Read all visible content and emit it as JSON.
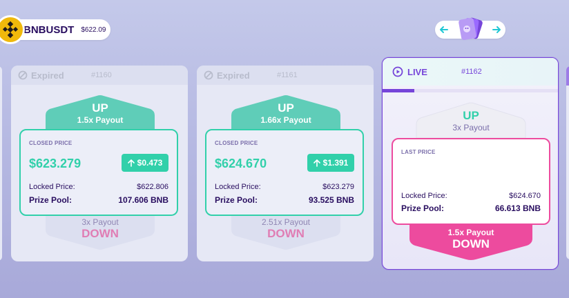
{
  "ticker": {
    "symbol": "BNBUSDT",
    "price": "$622.09",
    "logo_icon": "bnb-logo-icon",
    "logo_color": "#f0b90b"
  },
  "nav": {
    "prev_icon": "arrow-left-icon",
    "next_icon": "arrow-right-icon",
    "cards_icon": "cards-icon"
  },
  "colors": {
    "up": "#31d0aa",
    "down": "#ed4b9e",
    "accent": "#7645d9",
    "text": "#280d5f",
    "muted": "#7a6eaa"
  },
  "rounds": [
    {
      "status": "Expired",
      "epoch": "#1160",
      "up_label": "UP",
      "up_payout": "1.5x Payout",
      "box_title": "CLOSED PRICE",
      "closed_price": "$623.279",
      "diff": "$0.473",
      "locked_label": "Locked Price:",
      "locked_price": "$622.806",
      "pool_label": "Prize Pool:",
      "pool_value": "107.606 BNB",
      "down_payout": "3x Payout",
      "down_label": "DOWN"
    },
    {
      "status": "Expired",
      "epoch": "#1161",
      "up_label": "UP",
      "up_payout": "1.66x Payout",
      "box_title": "CLOSED PRICE",
      "closed_price": "$624.670",
      "diff": "$1.391",
      "locked_label": "Locked Price:",
      "locked_price": "$623.279",
      "pool_label": "Prize Pool:",
      "pool_value": "93.525 BNB",
      "down_payout": "2.51x Payout",
      "down_label": "DOWN"
    }
  ],
  "live": {
    "status": "LIVE",
    "epoch": "#1162",
    "progress": 0.18,
    "up_label": "UP",
    "up_payout": "3x Payout",
    "box_title": "LAST PRICE",
    "locked_label": "Locked Price:",
    "locked_price": "$624.670",
    "pool_label": "Prize Pool:",
    "pool_value": "66.613 BNB",
    "down_payout": "1.5x Payout",
    "down_label": "DOWN"
  }
}
